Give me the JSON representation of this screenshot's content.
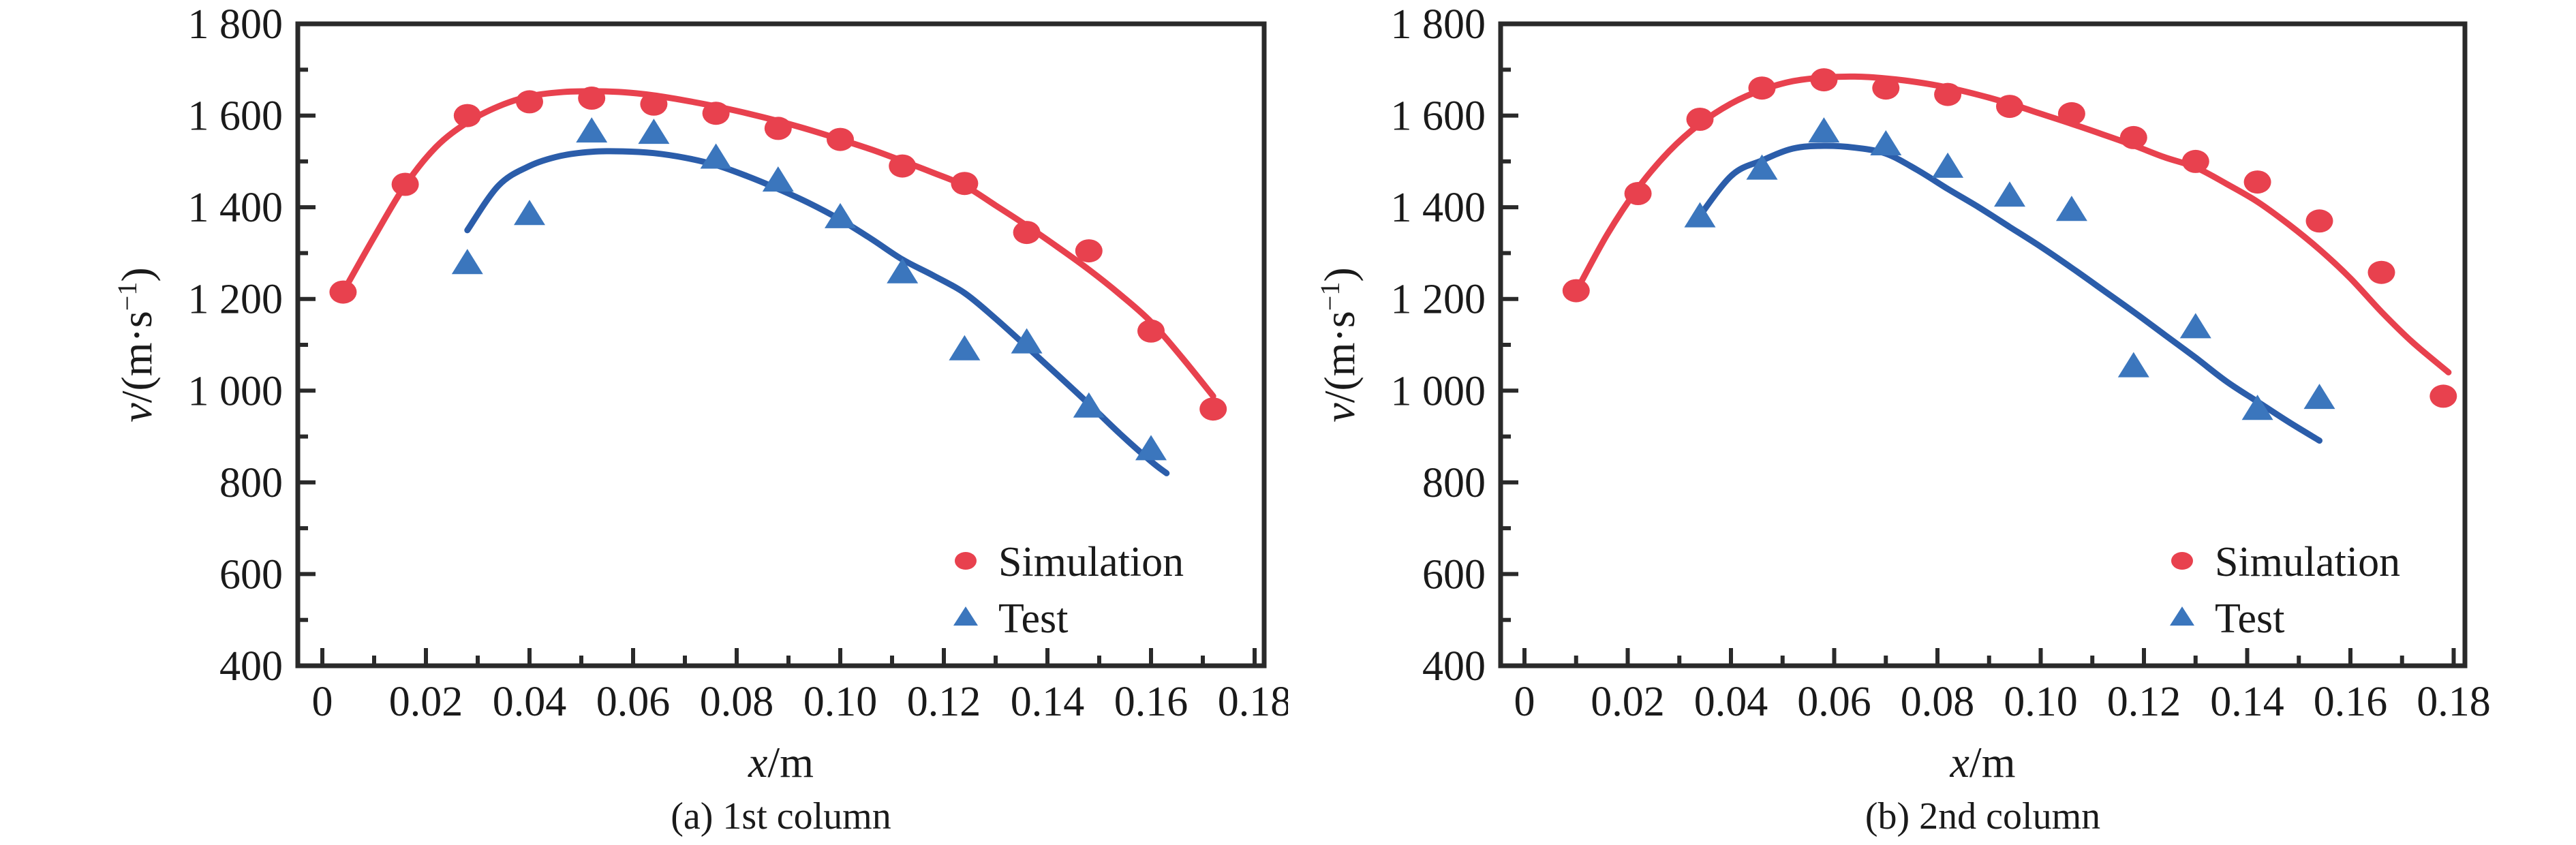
{
  "page": {
    "background": "#ffffff"
  },
  "colors": {
    "simulation": "#e8414e",
    "test_marker": "#3b76bd",
    "test_line": "#2b5daa",
    "frame": "#2a2a2a",
    "text": "#1a1a1a"
  },
  "chart_data": [
    {
      "type": "scatter",
      "caption": "(a) 1st column",
      "xlabel": "x/m",
      "xlabel_parts": [
        {
          "t": "x",
          "style": "italic"
        },
        {
          "t": "/m",
          "style": ""
        }
      ],
      "ylabel": "v/(m·s⁻¹)",
      "ylabel_parts": [
        {
          "t": "v",
          "style": "italic"
        },
        {
          "t": "/(m·s",
          "style": ""
        },
        {
          "t": "−1",
          "style": "sup"
        },
        {
          "t": ")",
          "style": ""
        }
      ],
      "xlim": [
        0,
        0.18
      ],
      "ylim": [
        400,
        1800
      ],
      "grid": false,
      "legend_position": "lower-right-inside",
      "x_ticks": [
        {
          "v": 0,
          "label": "0"
        },
        {
          "v": 0.02,
          "label": "0.02"
        },
        {
          "v": 0.04,
          "label": "0.04"
        },
        {
          "v": 0.06,
          "label": "0.06"
        },
        {
          "v": 0.08,
          "label": "0.08"
        },
        {
          "v": 0.1,
          "label": "0.10"
        },
        {
          "v": 0.12,
          "label": "0.12"
        },
        {
          "v": 0.14,
          "label": "0.14"
        },
        {
          "v": 0.16,
          "label": "0.16"
        },
        {
          "v": 0.18,
          "label": "0.18"
        }
      ],
      "y_ticks": [
        {
          "v": 400,
          "label": "400"
        },
        {
          "v": 600,
          "label": "600"
        },
        {
          "v": 800,
          "label": "800"
        },
        {
          "v": 1000,
          "label": "1 000"
        },
        {
          "v": 1200,
          "label": "1 200"
        },
        {
          "v": 1400,
          "label": "1 400"
        },
        {
          "v": 1600,
          "label": "1 600"
        },
        {
          "v": 1800,
          "label": "1 800"
        }
      ],
      "x_minor_step": 0.01,
      "y_minor_step": 100,
      "series": [
        {
          "name": "Simulation",
          "marker": "circle",
          "points": [
            [
              0.004,
              1215
            ],
            [
              0.016,
              1450
            ],
            [
              0.028,
              1600
            ],
            [
              0.04,
              1630
            ],
            [
              0.052,
              1638
            ],
            [
              0.064,
              1625
            ],
            [
              0.076,
              1605
            ],
            [
              0.088,
              1572
            ],
            [
              0.1,
              1548
            ],
            [
              0.112,
              1490
            ],
            [
              0.124,
              1452
            ],
            [
              0.136,
              1345
            ],
            [
              0.148,
              1305
            ],
            [
              0.16,
              1130
            ],
            [
              0.172,
              960
            ]
          ],
          "fit_curve": [
            [
              0.004,
              1215
            ],
            [
              0.01,
              1335
            ],
            [
              0.016,
              1448
            ],
            [
              0.022,
              1532
            ],
            [
              0.028,
              1585
            ],
            [
              0.034,
              1620
            ],
            [
              0.04,
              1642
            ],
            [
              0.046,
              1651
            ],
            [
              0.052,
              1653
            ],
            [
              0.058,
              1651
            ],
            [
              0.064,
              1644
            ],
            [
              0.07,
              1633
            ],
            [
              0.076,
              1620
            ],
            [
              0.082,
              1605
            ],
            [
              0.088,
              1588
            ],
            [
              0.094,
              1569
            ],
            [
              0.1,
              1548
            ],
            [
              0.106,
              1526
            ],
            [
              0.112,
              1501
            ],
            [
              0.118,
              1475
            ],
            [
              0.124,
              1447
            ],
            [
              0.13,
              1404
            ],
            [
              0.136,
              1360
            ],
            [
              0.142,
              1313
            ],
            [
              0.148,
              1264
            ],
            [
              0.154,
              1210
            ],
            [
              0.16,
              1150
            ],
            [
              0.166,
              1072
            ],
            [
              0.172,
              988
            ]
          ]
        },
        {
          "name": "Test",
          "marker": "triangle",
          "points": [
            [
              0.028,
              1278
            ],
            [
              0.04,
              1385
            ],
            [
              0.052,
              1565
            ],
            [
              0.064,
              1562
            ],
            [
              0.076,
              1508
            ],
            [
              0.088,
              1458
            ],
            [
              0.1,
              1378
            ],
            [
              0.112,
              1258
            ],
            [
              0.124,
              1090
            ],
            [
              0.136,
              1105
            ],
            [
              0.148,
              965
            ],
            [
              0.16,
              872
            ]
          ],
          "fit_curve": [
            [
              0.028,
              1350
            ],
            [
              0.034,
              1447
            ],
            [
              0.04,
              1490
            ],
            [
              0.046,
              1512
            ],
            [
              0.052,
              1521
            ],
            [
              0.058,
              1522
            ],
            [
              0.064,
              1518
            ],
            [
              0.07,
              1508
            ],
            [
              0.076,
              1492
            ],
            [
              0.082,
              1468
            ],
            [
              0.088,
              1440
            ],
            [
              0.094,
              1409
            ],
            [
              0.1,
              1373
            ],
            [
              0.106,
              1331
            ],
            [
              0.112,
              1286
            ],
            [
              0.118,
              1251
            ],
            [
              0.124,
              1213
            ],
            [
              0.13,
              1157
            ],
            [
              0.136,
              1096
            ],
            [
              0.142,
              1034
            ],
            [
              0.148,
              971
            ],
            [
              0.154,
              906
            ],
            [
              0.16,
              846
            ],
            [
              0.163,
              820
            ]
          ]
        }
      ],
      "legend": {
        "simulation_label": "Simulation",
        "test_label": "Test"
      }
    },
    {
      "type": "scatter",
      "caption": "(b) 2nd column",
      "xlabel": "x/m",
      "xlabel_parts": [
        {
          "t": "x",
          "style": "italic"
        },
        {
          "t": "/m",
          "style": ""
        }
      ],
      "ylabel": "v/(m·s⁻¹)",
      "ylabel_parts": [
        {
          "t": "v",
          "style": "italic"
        },
        {
          "t": "/(m·s",
          "style": ""
        },
        {
          "t": "−1",
          "style": "sup"
        },
        {
          "t": ")",
          "style": ""
        }
      ],
      "xlim": [
        0,
        0.18
      ],
      "ylim": [
        400,
        1800
      ],
      "grid": false,
      "legend_position": "lower-right-inside",
      "x_ticks": [
        {
          "v": 0,
          "label": "0"
        },
        {
          "v": 0.02,
          "label": "0.02"
        },
        {
          "v": 0.04,
          "label": "0.04"
        },
        {
          "v": 0.06,
          "label": "0.06"
        },
        {
          "v": 0.08,
          "label": "0.08"
        },
        {
          "v": 0.1,
          "label": "0.10"
        },
        {
          "v": 0.12,
          "label": "0.12"
        },
        {
          "v": 0.14,
          "label": "0.14"
        },
        {
          "v": 0.16,
          "label": "0.16"
        },
        {
          "v": 0.18,
          "label": "0.18"
        }
      ],
      "y_ticks": [
        {
          "v": 400,
          "label": "400"
        },
        {
          "v": 600,
          "label": "600"
        },
        {
          "v": 800,
          "label": "800"
        },
        {
          "v": 1000,
          "label": "1 000"
        },
        {
          "v": 1200,
          "label": "1 200"
        },
        {
          "v": 1400,
          "label": "1 400"
        },
        {
          "v": 1600,
          "label": "1 600"
        },
        {
          "v": 1800,
          "label": "1 800"
        }
      ],
      "x_minor_step": 0.01,
      "y_minor_step": 100,
      "series": [
        {
          "name": "Simulation",
          "marker": "circle",
          "points": [
            [
              0.01,
              1218
            ],
            [
              0.022,
              1430
            ],
            [
              0.034,
              1592
            ],
            [
              0.046,
              1660
            ],
            [
              0.058,
              1678
            ],
            [
              0.07,
              1660
            ],
            [
              0.082,
              1646
            ],
            [
              0.094,
              1620
            ],
            [
              0.106,
              1604
            ],
            [
              0.118,
              1552
            ],
            [
              0.13,
              1500
            ],
            [
              0.142,
              1455
            ],
            [
              0.154,
              1370
            ],
            [
              0.166,
              1258
            ],
            [
              0.178,
              988
            ]
          ],
          "fit_curve": [
            [
              0.01,
              1216
            ],
            [
              0.016,
              1340
            ],
            [
              0.022,
              1442
            ],
            [
              0.028,
              1522
            ],
            [
              0.034,
              1582
            ],
            [
              0.04,
              1626
            ],
            [
              0.046,
              1656
            ],
            [
              0.052,
              1675
            ],
            [
              0.058,
              1683
            ],
            [
              0.064,
              1685
            ],
            [
              0.07,
              1681
            ],
            [
              0.076,
              1673
            ],
            [
              0.082,
              1661
            ],
            [
              0.088,
              1645
            ],
            [
              0.094,
              1626
            ],
            [
              0.1,
              1604
            ],
            [
              0.106,
              1582
            ],
            [
              0.112,
              1559
            ],
            [
              0.118,
              1535
            ],
            [
              0.124,
              1509
            ],
            [
              0.13,
              1487
            ],
            [
              0.136,
              1451
            ],
            [
              0.142,
              1412
            ],
            [
              0.148,
              1363
            ],
            [
              0.154,
              1308
            ],
            [
              0.16,
              1245
            ],
            [
              0.166,
              1172
            ],
            [
              0.172,
              1106
            ],
            [
              0.179,
              1040
            ]
          ]
        },
        {
          "name": "Test",
          "marker": "triangle",
          "points": [
            [
              0.034,
              1380
            ],
            [
              0.046,
              1484
            ],
            [
              0.058,
              1565
            ],
            [
              0.07,
              1537
            ],
            [
              0.082,
              1488
            ],
            [
              0.094,
              1425
            ],
            [
              0.106,
              1394
            ],
            [
              0.118,
              1053
            ],
            [
              0.13,
              1138
            ],
            [
              0.142,
              960
            ],
            [
              0.154,
              984
            ]
          ],
          "fit_curve": [
            [
              0.033,
              1366
            ],
            [
              0.04,
              1468
            ],
            [
              0.046,
              1502
            ],
            [
              0.052,
              1528
            ],
            [
              0.058,
              1534
            ],
            [
              0.064,
              1530
            ],
            [
              0.07,
              1517
            ],
            [
              0.076,
              1482
            ],
            [
              0.082,
              1440
            ],
            [
              0.088,
              1400
            ],
            [
              0.094,
              1357
            ],
            [
              0.1,
              1314
            ],
            [
              0.106,
              1268
            ],
            [
              0.112,
              1220
            ],
            [
              0.118,
              1172
            ],
            [
              0.124,
              1122
            ],
            [
              0.13,
              1072
            ],
            [
              0.136,
              1020
            ],
            [
              0.142,
              976
            ],
            [
              0.148,
              932
            ],
            [
              0.154,
              891
            ]
          ]
        }
      ],
      "legend": {
        "simulation_label": "Simulation",
        "test_label": "Test"
      }
    }
  ]
}
